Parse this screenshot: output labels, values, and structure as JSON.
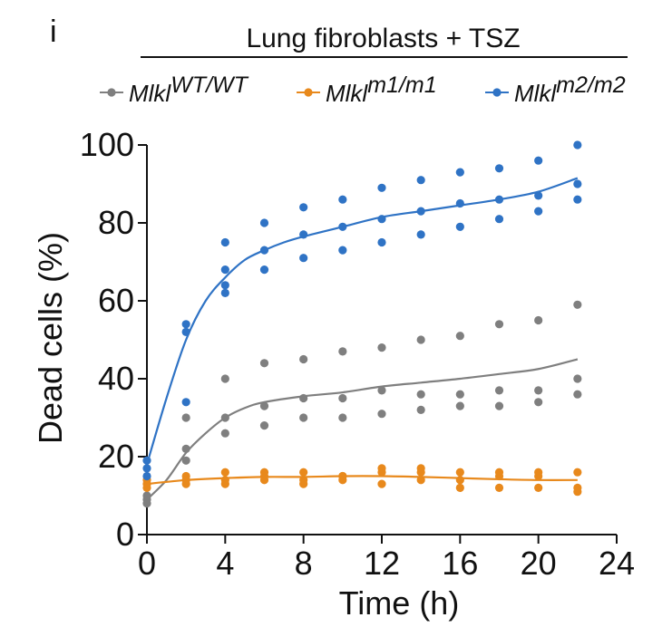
{
  "panel_label": "i",
  "chart_data": {
    "type": "scatter",
    "title": "Lung fibroblasts + TSZ",
    "xlabel": "Time (h)",
    "ylabel": "Dead cells (%)",
    "xlim": [
      0,
      24
    ],
    "ylim": [
      0,
      100
    ],
    "xticks": [
      0,
      4,
      8,
      12,
      16,
      20,
      24
    ],
    "yticks": [
      0,
      20,
      40,
      60,
      80,
      100
    ],
    "grid": false,
    "legend_position": "top",
    "series": [
      {
        "name": "Mlkl",
        "name_superscript": "WT/WT",
        "color": "#7f7f7f",
        "points": [
          [
            0,
            9
          ],
          [
            0,
            10
          ],
          [
            0,
            8
          ],
          [
            2,
            30
          ],
          [
            2,
            22
          ],
          [
            2,
            19
          ],
          [
            4,
            40
          ],
          [
            4,
            30
          ],
          [
            4,
            26
          ],
          [
            6,
            44
          ],
          [
            6,
            33
          ],
          [
            6,
            28
          ],
          [
            8,
            45
          ],
          [
            8,
            35
          ],
          [
            8,
            30
          ],
          [
            10,
            47
          ],
          [
            10,
            35
          ],
          [
            10,
            30
          ],
          [
            12,
            48
          ],
          [
            12,
            37
          ],
          [
            12,
            31
          ],
          [
            14,
            50
          ],
          [
            14,
            36
          ],
          [
            14,
            32
          ],
          [
            16,
            51
          ],
          [
            16,
            36
          ],
          [
            16,
            33
          ],
          [
            18,
            54
          ],
          [
            18,
            37
          ],
          [
            18,
            33
          ],
          [
            20,
            55
          ],
          [
            20,
            37
          ],
          [
            20,
            34
          ],
          [
            22,
            59
          ],
          [
            22,
            40
          ],
          [
            22,
            36
          ]
        ],
        "fit": [
          [
            0,
            9
          ],
          [
            1,
            14
          ],
          [
            2,
            21
          ],
          [
            3,
            26
          ],
          [
            4,
            30
          ],
          [
            5,
            32.5
          ],
          [
            6,
            34
          ],
          [
            8,
            35.5
          ],
          [
            10,
            36.5
          ],
          [
            12,
            38
          ],
          [
            14,
            39
          ],
          [
            16,
            40
          ],
          [
            18,
            41.2
          ],
          [
            20,
            42.5
          ],
          [
            22,
            45
          ]
        ]
      },
      {
        "name": "Mlkl",
        "name_superscript": "m1/m1",
        "color": "#e8891c",
        "points": [
          [
            0,
            14
          ],
          [
            0,
            13
          ],
          [
            0,
            12
          ],
          [
            2,
            15
          ],
          [
            2,
            14
          ],
          [
            2,
            13
          ],
          [
            4,
            16
          ],
          [
            4,
            14
          ],
          [
            4,
            13
          ],
          [
            6,
            16
          ],
          [
            6,
            15
          ],
          [
            6,
            14
          ],
          [
            8,
            16
          ],
          [
            8,
            14
          ],
          [
            8,
            13
          ],
          [
            10,
            15
          ],
          [
            10,
            15
          ],
          [
            10,
            14
          ],
          [
            12,
            17
          ],
          [
            12,
            16
          ],
          [
            12,
            13
          ],
          [
            14,
            17
          ],
          [
            14,
            16
          ],
          [
            14,
            14
          ],
          [
            16,
            16
          ],
          [
            16,
            14
          ],
          [
            16,
            12
          ],
          [
            18,
            16
          ],
          [
            18,
            15
          ],
          [
            18,
            12
          ],
          [
            20,
            16
          ],
          [
            20,
            15
          ],
          [
            20,
            12
          ],
          [
            22,
            16
          ],
          [
            22,
            12
          ],
          [
            22,
            11
          ]
        ],
        "fit": [
          [
            0,
            13
          ],
          [
            2,
            14
          ],
          [
            4,
            14.5
          ],
          [
            6,
            14.8
          ],
          [
            8,
            14.8
          ],
          [
            10,
            15
          ],
          [
            12,
            15
          ],
          [
            14,
            14.8
          ],
          [
            16,
            14.5
          ],
          [
            18,
            14.2
          ],
          [
            20,
            14
          ],
          [
            22,
            14
          ]
        ]
      },
      {
        "name": "Mlkl",
        "name_superscript": "m2/m2",
        "color": "#2f73c5",
        "points": [
          [
            0,
            19
          ],
          [
            0,
            17
          ],
          [
            0,
            15
          ],
          [
            2,
            54
          ],
          [
            2,
            52
          ],
          [
            2,
            34
          ],
          [
            4,
            75
          ],
          [
            4,
            68
          ],
          [
            4,
            64
          ],
          [
            4,
            62
          ],
          [
            6,
            80
          ],
          [
            6,
            73
          ],
          [
            6,
            68
          ],
          [
            8,
            84
          ],
          [
            8,
            77
          ],
          [
            8,
            71
          ],
          [
            10,
            86
          ],
          [
            10,
            79
          ],
          [
            10,
            73
          ],
          [
            12,
            89
          ],
          [
            12,
            81
          ],
          [
            12,
            75
          ],
          [
            14,
            91
          ],
          [
            14,
            83
          ],
          [
            14,
            77
          ],
          [
            16,
            93
          ],
          [
            16,
            85
          ],
          [
            16,
            79
          ],
          [
            18,
            94
          ],
          [
            18,
            86
          ],
          [
            18,
            81
          ],
          [
            20,
            96
          ],
          [
            20,
            87
          ],
          [
            20,
            83
          ],
          [
            22,
            100
          ],
          [
            22,
            90
          ],
          [
            22,
            86
          ]
        ],
        "fit": [
          [
            0,
            18
          ],
          [
            1,
            35
          ],
          [
            2,
            50
          ],
          [
            3,
            60
          ],
          [
            4,
            66
          ],
          [
            5,
            70.5
          ],
          [
            6,
            73
          ],
          [
            7,
            75
          ],
          [
            8,
            76.5
          ],
          [
            10,
            79
          ],
          [
            12,
            81.5
          ],
          [
            14,
            83
          ],
          [
            16,
            84.5
          ],
          [
            18,
            86
          ],
          [
            20,
            88
          ],
          [
            22,
            91.5
          ]
        ]
      }
    ]
  }
}
